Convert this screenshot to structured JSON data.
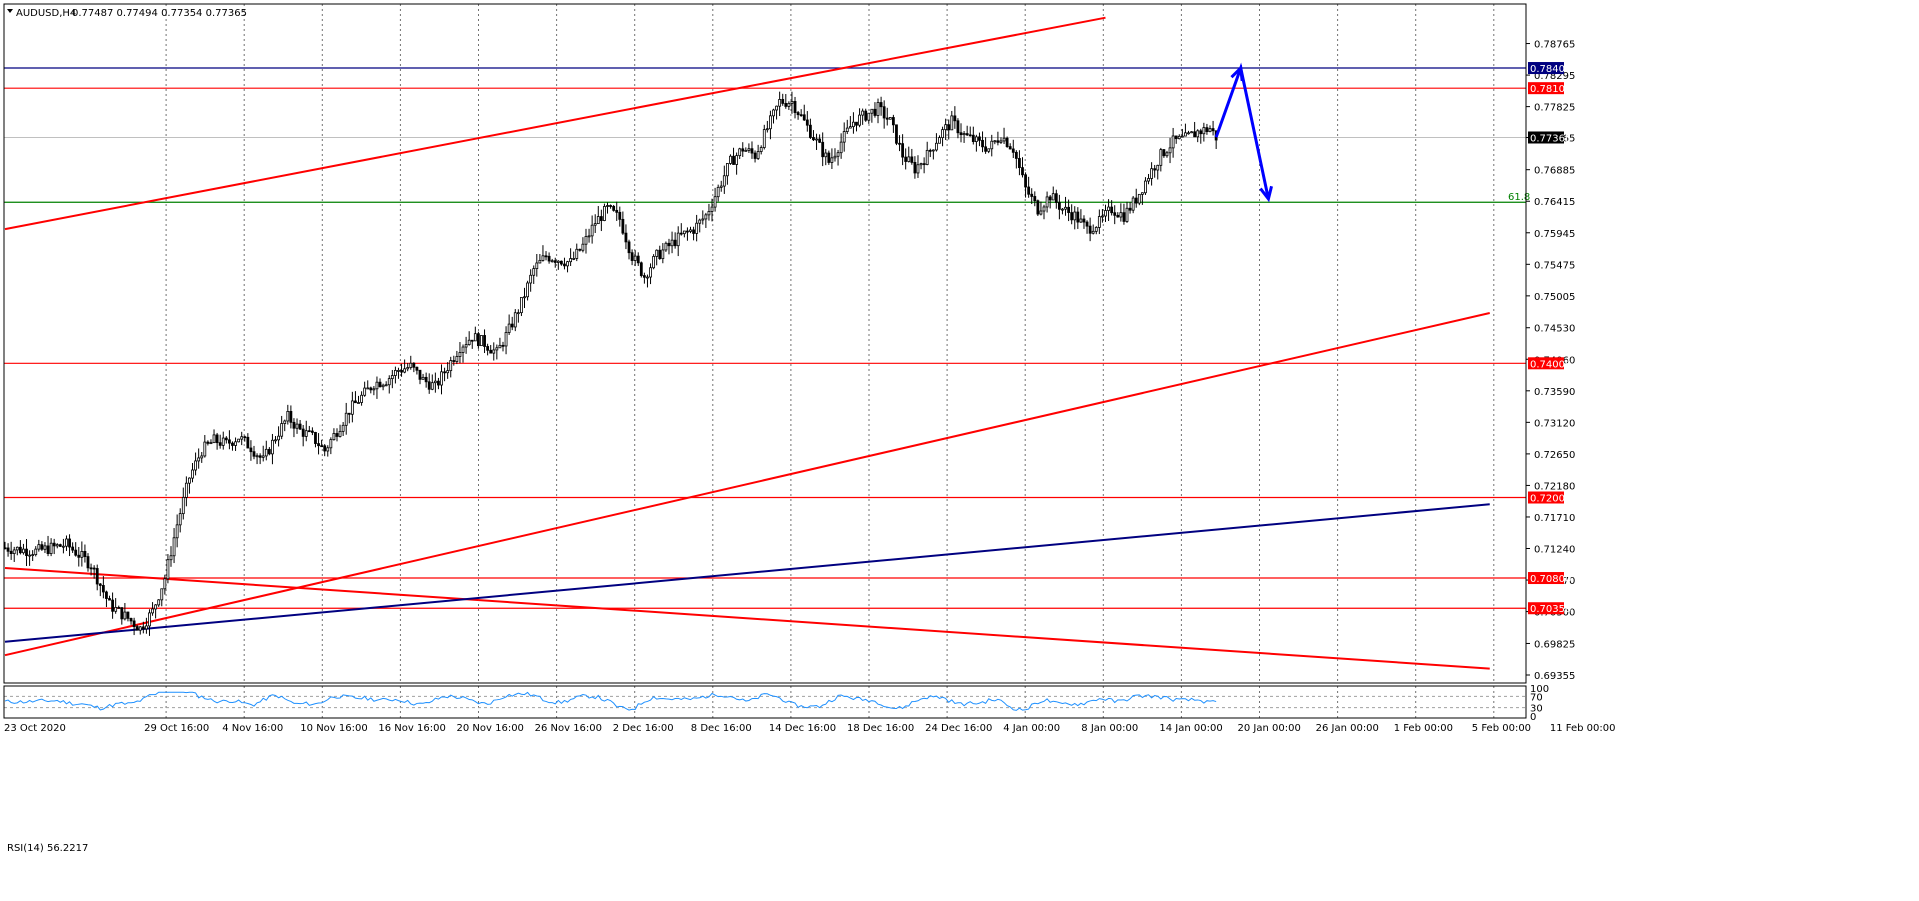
{
  "header": {
    "symbol": "AUDUSD,H4",
    "ohlc": "0.77487 0.77494 0.77354 0.77365"
  },
  "rsi": {
    "label": "RSI(14) 56.2217",
    "levels": [
      "100",
      "70",
      "30",
      "0"
    ],
    "color": "#1e90ff"
  },
  "colors": {
    "candle": "#000000",
    "support_resistance": "#ff0000",
    "blue_level": "#000080",
    "fib": "#008000",
    "forecast_arrow": "#0000ff",
    "grid": "#000000"
  },
  "chart_data": {
    "type": "candlestick",
    "title": "AUDUSD,H4",
    "ylim": [
      0.69355,
      0.79235
    ],
    "y_ticks": [
      "0.78765",
      "0.78295",
      "0.77825",
      "0.77365",
      "0.76885",
      "0.76415",
      "0.75945",
      "0.75475",
      "0.75005",
      "0.74530",
      "0.74060",
      "0.73590",
      "0.73120",
      "0.72650",
      "0.72180",
      "0.71710",
      "0.71240",
      "0.70770",
      "0.70300",
      "0.69825",
      "0.69355"
    ],
    "x_ticks": [
      "23 Oct 2020",
      "29 Oct 16:00",
      "4 Nov 16:00",
      "10 Nov 16:00",
      "16 Nov 16:00",
      "20 Nov 16:00",
      "26 Nov 16:00",
      "2 Dec 16:00",
      "8 Dec 16:00",
      "14 Dec 16:00",
      "18 Dec 16:00",
      "24 Dec 16:00",
      "4 Jan 00:00",
      "8 Jan 00:00",
      "14 Jan 00:00",
      "20 Jan 00:00",
      "26 Jan 00:00",
      "1 Feb 00:00",
      "5 Feb 00:00",
      "11 Feb 00:00"
    ],
    "grid": "vertical dotted",
    "horizontal_levels": [
      {
        "price": 0.784,
        "label": "0.78400",
        "color": "#000080"
      },
      {
        "price": 0.781,
        "label": "0.78100",
        "color": "#ff0000"
      },
      {
        "price": 0.74,
        "label": "0.74000",
        "color": "#ff0000"
      },
      {
        "price": 0.72,
        "label": "0.72000",
        "color": "#ff0000"
      },
      {
        "price": 0.708,
        "label": "0.70800",
        "color": "#ff0000"
      },
      {
        "price": 0.7035,
        "label": "0.70350",
        "color": "#ff0000"
      }
    ],
    "fib_level": {
      "price": 0.764,
      "label": "61.8"
    },
    "current_price": "0.77365",
    "price_path": [
      [
        0,
        0.7125
      ],
      [
        10,
        0.712
      ],
      [
        20,
        0.713
      ],
      [
        28,
        0.71
      ],
      [
        34,
        0.704
      ],
      [
        40,
        0.702
      ],
      [
        44,
        0.7005
      ],
      [
        48,
        0.703
      ],
      [
        52,
        0.708
      ],
      [
        56,
        0.716
      ],
      [
        60,
        0.723
      ],
      [
        64,
        0.727
      ],
      [
        68,
        0.7285
      ],
      [
        72,
        0.728
      ],
      [
        76,
        0.729
      ],
      [
        80,
        0.7275
      ],
      [
        84,
        0.7255
      ],
      [
        88,
        0.729
      ],
      [
        92,
        0.732
      ],
      [
        96,
        0.73
      ],
      [
        100,
        0.729
      ],
      [
        104,
        0.727
      ],
      [
        108,
        0.73
      ],
      [
        112,
        0.733
      ],
      [
        116,
        0.735
      ],
      [
        120,
        0.737
      ],
      [
        124,
        0.7375
      ],
      [
        128,
        0.739
      ],
      [
        132,
        0.7395
      ],
      [
        136,
        0.7375
      ],
      [
        140,
        0.7365
      ],
      [
        144,
        0.7395
      ],
      [
        148,
        0.7425
      ],
      [
        152,
        0.744
      ],
      [
        156,
        0.743
      ],
      [
        160,
        0.7415
      ],
      [
        164,
        0.745
      ],
      [
        168,
        0.749
      ],
      [
        172,
        0.754
      ],
      [
        176,
        0.756
      ],
      [
        180,
        0.7555
      ],
      [
        184,
        0.755
      ],
      [
        188,
        0.7575
      ],
      [
        192,
        0.761
      ],
      [
        196,
        0.763
      ],
      [
        200,
        0.7615
      ],
      [
        204,
        0.756
      ],
      [
        208,
        0.753
      ],
      [
        212,
        0.756
      ],
      [
        216,
        0.7575
      ],
      [
        220,
        0.759
      ],
      [
        224,
        0.76
      ],
      [
        228,
        0.762
      ],
      [
        232,
        0.766
      ],
      [
        236,
        0.77
      ],
      [
        240,
        0.772
      ],
      [
        244,
        0.771
      ],
      [
        248,
        0.775
      ],
      [
        252,
        0.779
      ],
      [
        256,
        0.779
      ],
      [
        260,
        0.776
      ],
      [
        264,
        0.773
      ],
      [
        268,
        0.77
      ],
      [
        272,
        0.773
      ],
      [
        276,
        0.776
      ],
      [
        280,
        0.777
      ],
      [
        284,
        0.778
      ],
      [
        288,
        0.776
      ],
      [
        292,
        0.771
      ],
      [
        296,
        0.769
      ],
      [
        300,
        0.771
      ],
      [
        304,
        0.774
      ],
      [
        308,
        0.776
      ],
      [
        312,
        0.774
      ],
      [
        316,
        0.773
      ],
      [
        320,
        0.772
      ],
      [
        324,
        0.774
      ],
      [
        328,
        0.772
      ],
      [
        332,
        0.766
      ],
      [
        336,
        0.763
      ],
      [
        340,
        0.765
      ],
      [
        344,
        0.763
      ],
      [
        348,
        0.762
      ],
      [
        352,
        0.76
      ],
      [
        356,
        0.761
      ],
      [
        360,
        0.763
      ],
      [
        364,
        0.762
      ],
      [
        368,
        0.7645
      ],
      [
        372,
        0.768
      ],
      [
        376,
        0.771
      ],
      [
        380,
        0.773
      ],
      [
        384,
        0.7735
      ],
      [
        388,
        0.7745
      ],
      [
        392,
        0.775
      ],
      [
        394,
        0.7737
      ]
    ],
    "total_bars": 395,
    "trendlines": [
      {
        "color": "#ff0000",
        "from": [
          0,
          0.76
        ],
        "to": [
          358,
          0.7915
        ]
      },
      {
        "color": "#ff0000",
        "from": [
          0,
          0.6965
        ],
        "to": [
          483,
          0.7475
        ]
      },
      {
        "color": "#ff0000",
        "from": [
          0,
          0.7095
        ],
        "to": [
          483,
          0.6945
        ]
      },
      {
        "color": "#000080",
        "from": [
          0,
          0.6985
        ],
        "to": [
          483,
          0.719
        ]
      }
    ],
    "forecast_arrow": [
      [
        394,
        0.7737
      ],
      [
        402,
        0.784
      ],
      [
        411,
        0.7645
      ]
    ]
  }
}
